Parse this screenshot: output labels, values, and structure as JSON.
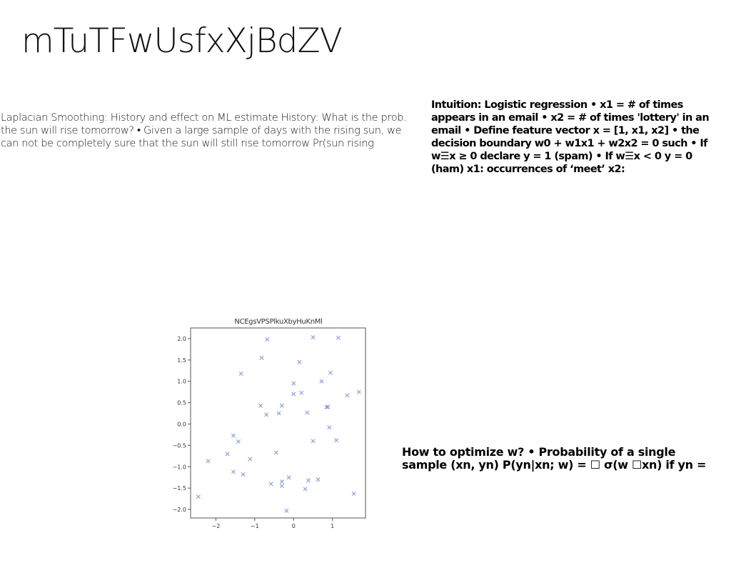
{
  "slide": {
    "title": "mTuTFwUsfxXjBdZV",
    "left_text": "Laplacian Smoothing: History and effect on ML estimate History: What is the prob. the sun will rise tomorrow? • Given a large sample of days with the rising sun, we can not be completely sure that the sun will still rise tomorrow Pr(sun rising",
    "right_text": "Intuition: Logistic regression • x1 = # of times appears in an email • x2 = # of times 'lottery' in an email • Define feature vector x = [1, x1, x2] • the decision boundary w0 + w1x1 + w2x2 = 0 such • If w☰x ≥ 0 declare y = 1 (spam) • If w☰x < 0 y = 0 (ham) x1: occurrences of ‘meet’ x2:",
    "bottom_text": {
      "line1": "How to optimize w? • Probability of a single",
      "line2": "sample (xn, yn) P(yn|xn; w) = ☐ σ(w ☐xn) if yn ="
    }
  },
  "chart_data": {
    "type": "scatter",
    "title": "NCEgsVPSPlkuXbyHuKnMl",
    "xlabel": "",
    "ylabel": "",
    "xlim": [
      -2.65,
      1.85
    ],
    "ylim": [
      -2.2,
      2.25
    ],
    "xticks": [
      -2,
      -1,
      0,
      1
    ],
    "yticks": [
      2.0,
      1.5,
      1.0,
      0.5,
      0.0,
      -0.5,
      -1.0,
      -1.5,
      -2.0
    ],
    "xtick_labels": [
      "−2",
      "−1",
      "0",
      "1"
    ],
    "ytick_labels": [
      "2.0",
      "1.5",
      "1.0",
      "0.5",
      "0.0",
      "−0.5",
      "−1.0",
      "−1.5",
      "−2.0"
    ],
    "marker": "x",
    "color": "#8c9ad6",
    "grid": false,
    "series": [
      {
        "points": [
          [
            -2.45,
            -1.7
          ],
          [
            -2.2,
            -0.87
          ],
          [
            -1.7,
            -0.7
          ],
          [
            -1.55,
            -0.27
          ],
          [
            -1.55,
            -1.12
          ],
          [
            -1.42,
            -0.41
          ],
          [
            -1.35,
            1.18
          ],
          [
            -1.3,
            -1.18
          ],
          [
            -1.12,
            -0.82
          ],
          [
            -0.85,
            0.43
          ],
          [
            -0.82,
            1.55
          ],
          [
            -0.7,
            0.22
          ],
          [
            -0.68,
            1.98
          ],
          [
            -0.58,
            -1.4
          ],
          [
            -0.45,
            -0.67
          ],
          [
            -0.38,
            0.25
          ],
          [
            -0.3,
            0.43
          ],
          [
            -0.3,
            -1.35
          ],
          [
            -0.3,
            -1.45
          ],
          [
            -0.18,
            -2.03
          ],
          [
            -0.12,
            -1.25
          ],
          [
            0.0,
            0.95
          ],
          [
            0.0,
            0.7
          ],
          [
            0.15,
            1.45
          ],
          [
            0.2,
            0.73
          ],
          [
            0.3,
            -1.52
          ],
          [
            0.35,
            0.27
          ],
          [
            0.38,
            -1.32
          ],
          [
            0.5,
            2.03
          ],
          [
            0.5,
            -0.4
          ],
          [
            0.63,
            -1.3
          ],
          [
            0.72,
            1.0
          ],
          [
            0.85,
            0.4
          ],
          [
            0.88,
            0.4
          ],
          [
            0.92,
            -0.08
          ],
          [
            0.95,
            1.2
          ],
          [
            1.1,
            -0.38
          ],
          [
            1.15,
            2.02
          ],
          [
            1.38,
            0.67
          ],
          [
            1.55,
            -1.63
          ],
          [
            1.68,
            0.75
          ]
        ]
      }
    ]
  }
}
